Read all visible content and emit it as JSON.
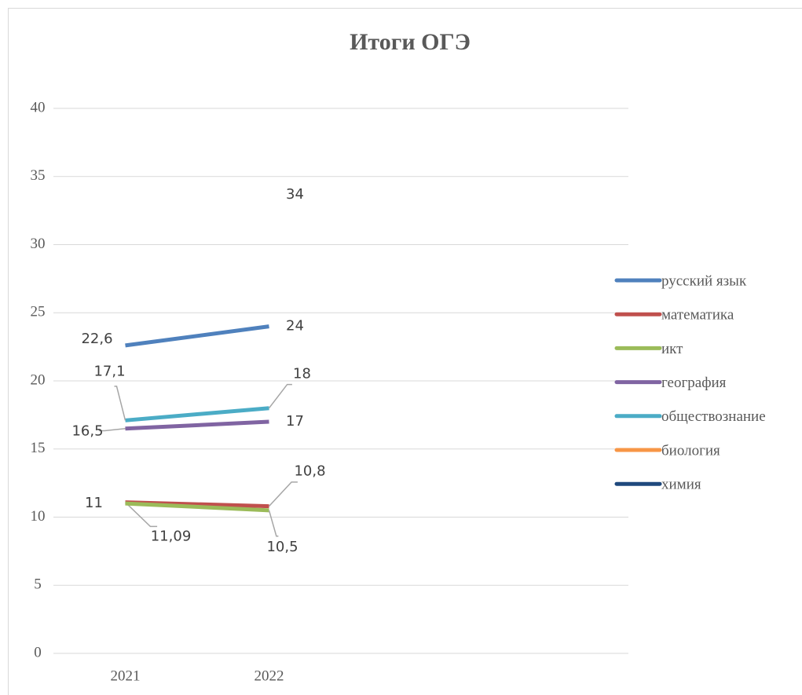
{
  "chart_data": {
    "type": "line",
    "title": "Итоги ОГЭ",
    "categories": [
      "2021",
      "2022",
      null,
      null
    ],
    "series": [
      {
        "name": "русский язык",
        "color": "#4f81bd",
        "values": [
          22.6,
          24,
          null,
          null
        ],
        "value_labels": [
          "22,6",
          "24",
          null,
          null
        ]
      },
      {
        "name": "математика",
        "color": "#c0504d",
        "values": [
          11.09,
          10.8,
          null,
          null
        ],
        "value_labels": [
          "11,09",
          "10,8",
          null,
          null
        ]
      },
      {
        "name": "икт",
        "color": "#9bbb59",
        "values": [
          11,
          10.5,
          null,
          null
        ],
        "value_labels": [
          "11",
          "10,5",
          null,
          null
        ]
      },
      {
        "name": "география",
        "color": "#8064a2",
        "values": [
          16.5,
          17,
          null,
          null
        ],
        "value_labels": [
          "16,5",
          "17",
          null,
          null
        ]
      },
      {
        "name": "обществознание",
        "color": "#4bacc6",
        "values": [
          17.1,
          18,
          null,
          null
        ],
        "value_labels": [
          "17,1",
          "18",
          null,
          null
        ]
      },
      {
        "name": "биология",
        "color": "#f79646",
        "values": [
          null,
          34,
          null,
          null
        ],
        "value_labels": [
          null,
          "34",
          null,
          null
        ]
      },
      {
        "name": "химия",
        "color": "#1f497d",
        "values": [
          null,
          null,
          null,
          null
        ]
      }
    ],
    "ylim": [
      0,
      40
    ],
    "yticks": [
      0,
      5,
      10,
      15,
      20,
      25,
      30,
      35,
      40
    ],
    "grid": true,
    "legend": "right"
  }
}
